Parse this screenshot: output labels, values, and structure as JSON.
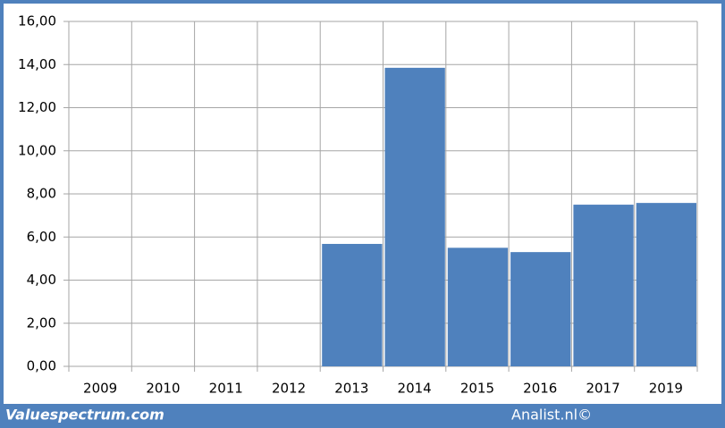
{
  "chart_data": {
    "type": "bar",
    "categories": [
      "2009",
      "2010",
      "2011",
      "2012",
      "2013",
      "2014",
      "2015",
      "2016",
      "2017",
      "2019"
    ],
    "values": [
      null,
      null,
      null,
      null,
      5.68,
      13.85,
      5.5,
      5.3,
      7.5,
      7.58
    ],
    "color": "#4f81bd",
    "ylim": [
      0,
      16
    ],
    "yticks": [
      {
        "value": 0,
        "label": "0,00"
      },
      {
        "value": 2,
        "label": "2,00"
      },
      {
        "value": 4,
        "label": "4,00"
      },
      {
        "value": 6,
        "label": "6,00"
      },
      {
        "value": 8,
        "label": "8,00"
      },
      {
        "value": 10,
        "label": "10,00"
      },
      {
        "value": 12,
        "label": "12,00"
      },
      {
        "value": 14,
        "label": "14,00"
      },
      {
        "value": 16,
        "label": "16,00"
      }
    ],
    "grid": true,
    "credits": [
      "Valuespectrum.com",
      "Analist.nl©"
    ]
  }
}
